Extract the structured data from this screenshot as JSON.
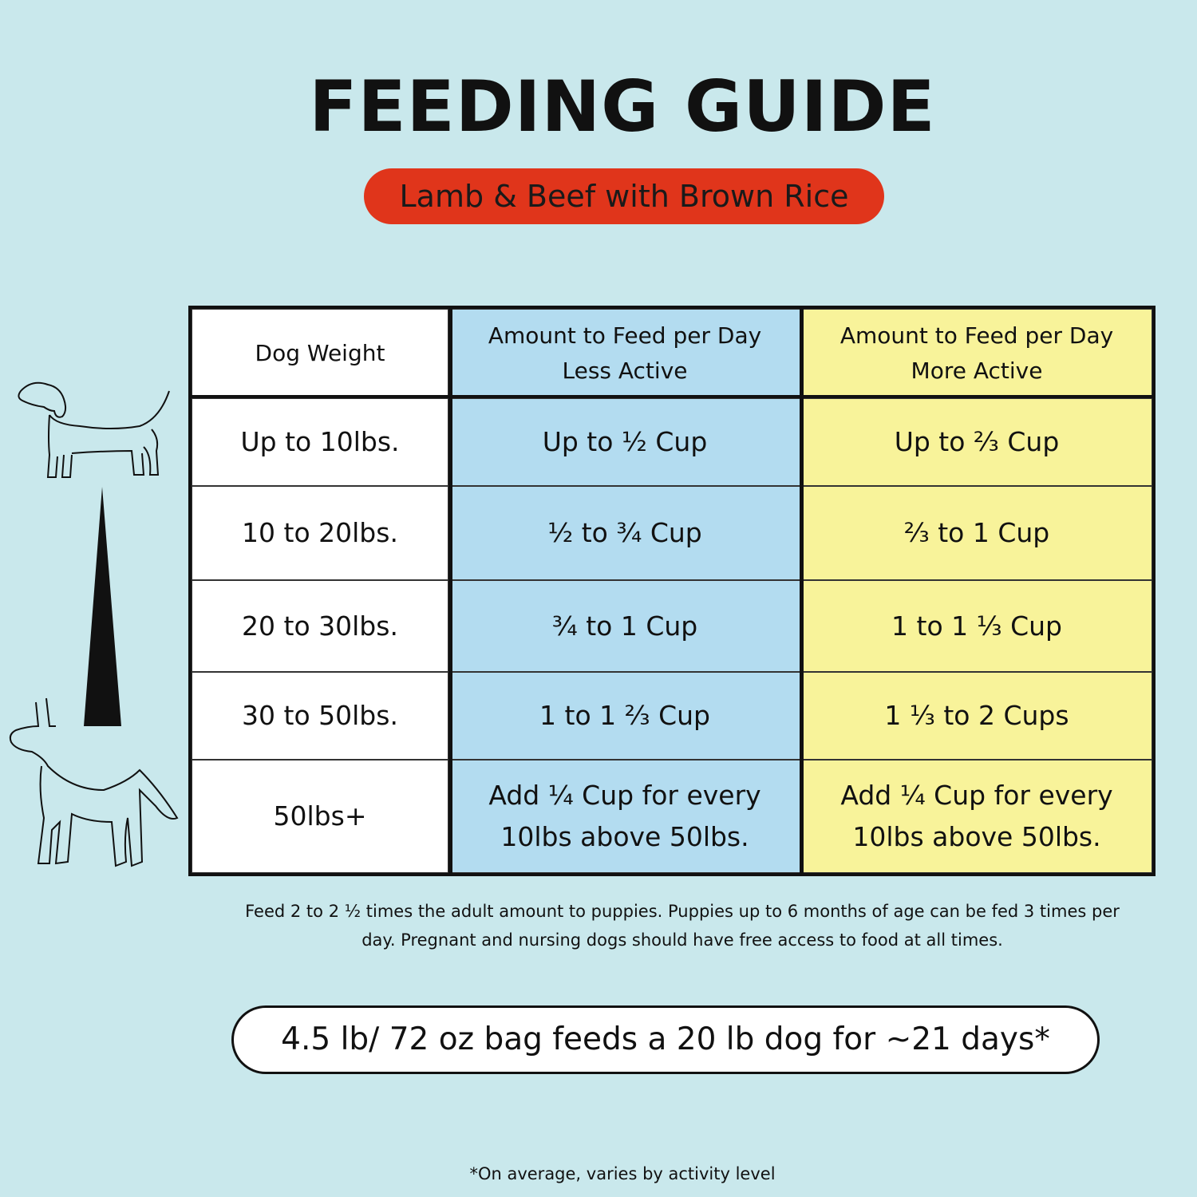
{
  "header": {
    "title": "FEEDING GUIDE",
    "subtitle": "Lamb & Beef with Brown Rice"
  },
  "table": {
    "columns": [
      [
        "Dog Weight"
      ],
      [
        "Amount to Feed per Day",
        "Less Active"
      ],
      [
        "Amount to Feed per Day",
        "More Active"
      ]
    ],
    "rows": [
      [
        [
          "Up to 10lbs."
        ],
        [
          "Up to ½ Cup"
        ],
        [
          "Up to ⅔ Cup"
        ]
      ],
      [
        [
          "10 to 20lbs."
        ],
        [
          "½ to ¾ Cup"
        ],
        [
          "⅔ to 1 Cup"
        ]
      ],
      [
        [
          "20 to 30lbs."
        ],
        [
          "¾ to 1 Cup"
        ],
        [
          "1 to 1 ⅓ Cup"
        ]
      ],
      [
        [
          "30 to 50lbs."
        ],
        [
          "1 to 1 ⅔ Cup"
        ],
        [
          "1 ⅓ to 2 Cups"
        ]
      ],
      [
        [
          "50lbs+"
        ],
        [
          "Add ¼ Cup for every",
          "10lbs above 50lbs."
        ],
        [
          "Add ¼ Cup for every",
          "10lbs above 50lbs."
        ]
      ]
    ]
  },
  "note": "Feed 2 to 2 ½ times the adult amount to puppies. Puppies up to 6 months of age can be fed 3 times per day. Pregnant and nursing dogs should have free access to food at all times.",
  "bag_info": "4.5 lb/ 72 oz bag feeds a 20 lb dog for ~21 days*",
  "footnote": "*On average, varies by activity level"
}
